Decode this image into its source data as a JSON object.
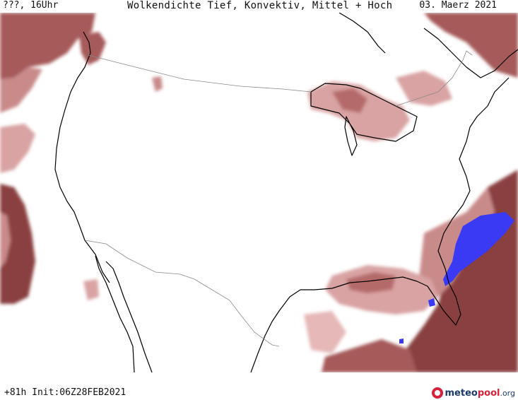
{
  "header": {
    "time_label": "???, 16Uhr",
    "title": "Wolkendichte  Tief, Konvektiv, Mittel + Hoch",
    "date": "03. Maerz 2021"
  },
  "footer": {
    "run_info": "+81h Init:06Z28FEB2021",
    "logo": {
      "part1": "meteo",
      "part2": "pool",
      "tld": ".org"
    }
  },
  "map": {
    "region": "Contiguous United States",
    "colors": {
      "cloud_light": "#e6b8b8",
      "cloud_medium": "#c98a8a",
      "cloud_dense": "#a65a5a",
      "cloud_very_dense": "#8a3f3f",
      "convective_core": "#3a3af5",
      "coastline": "#000000",
      "border": "#8a8a8a"
    }
  }
}
